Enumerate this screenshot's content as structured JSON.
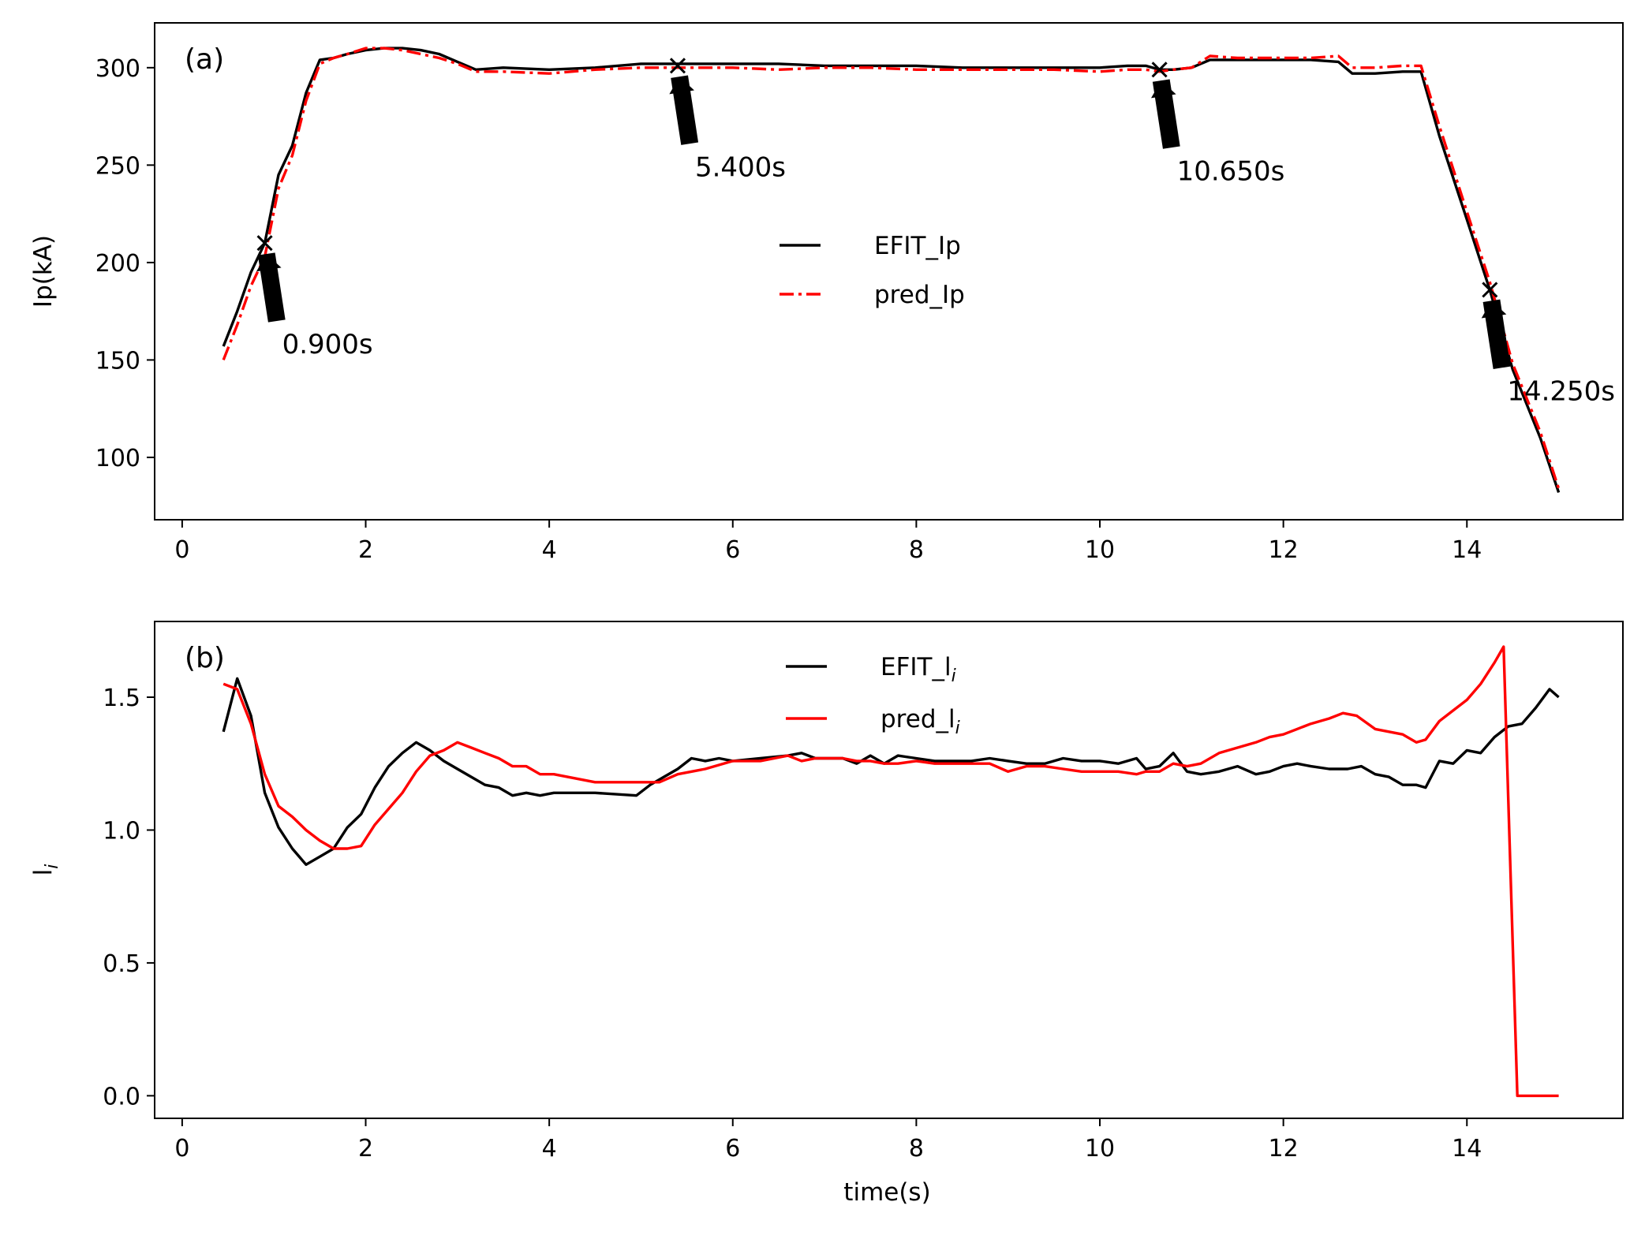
{
  "chart_data": [
    {
      "type": "line",
      "panel_label": "(a)",
      "xlabel": "",
      "ylabel": "Ip(kA)",
      "xlim": [
        -0.3,
        15.7
      ],
      "ylim": [
        68,
        323
      ],
      "xticks": [
        0,
        2,
        4,
        6,
        8,
        10,
        12,
        14
      ],
      "xtick_labels": [
        "0",
        "2",
        "4",
        "6",
        "8",
        "10",
        "12",
        "14"
      ],
      "yticks": [
        100,
        150,
        200,
        250,
        300
      ],
      "ytick_labels": [
        "100",
        "150",
        "200",
        "250",
        "300"
      ],
      "legend_position": "center",
      "series": [
        {
          "name": "EFIT_Ip",
          "label": "EFIT_Ip",
          "color": "#000000",
          "style": "solid",
          "x": [
            0.45,
            0.6,
            0.75,
            0.9,
            1.05,
            1.2,
            1.35,
            1.5,
            1.65,
            1.8,
            2.0,
            2.2,
            2.4,
            2.6,
            2.8,
            3.0,
            3.2,
            3.5,
            4.0,
            4.5,
            5.0,
            5.4,
            6.0,
            6.5,
            7.0,
            7.5,
            8.0,
            8.5,
            9.0,
            9.5,
            10.0,
            10.3,
            10.5,
            10.65,
            10.8,
            11.0,
            11.2,
            11.5,
            12.0,
            12.3,
            12.6,
            12.75,
            13.0,
            13.3,
            13.5,
            13.7,
            14.0,
            14.25,
            14.5,
            14.8,
            15.0
          ],
          "values": [
            157,
            175,
            195,
            210,
            245,
            260,
            287,
            304,
            305,
            307,
            309,
            310,
            310,
            309,
            307,
            303,
            299,
            300,
            299,
            300,
            302,
            302,
            302,
            302,
            301,
            301,
            301,
            300,
            300,
            300,
            300,
            301,
            301,
            299,
            299,
            300,
            304,
            304,
            304,
            304,
            303,
            297,
            297,
            298,
            298,
            265,
            222,
            186,
            145,
            110,
            82
          ]
        },
        {
          "name": "pred_Ip",
          "label": "pred_Ip",
          "color": "#ff0000",
          "style": "dashdot",
          "x": [
            0.45,
            0.6,
            0.75,
            0.9,
            1.05,
            1.2,
            1.35,
            1.5,
            1.65,
            1.8,
            2.0,
            2.2,
            2.4,
            2.6,
            2.8,
            3.0,
            3.2,
            3.5,
            4.0,
            4.5,
            5.0,
            5.4,
            6.0,
            6.5,
            7.0,
            7.5,
            8.0,
            8.5,
            9.0,
            9.5,
            10.0,
            10.3,
            10.5,
            10.65,
            10.8,
            11.0,
            11.2,
            11.5,
            12.0,
            12.3,
            12.6,
            12.75,
            13.0,
            13.3,
            13.5,
            13.7,
            14.0,
            14.25,
            14.5,
            14.8,
            15.0
          ],
          "values": [
            150,
            168,
            188,
            203,
            238,
            255,
            283,
            302,
            305,
            307,
            310,
            310,
            309,
            307,
            305,
            302,
            298,
            298,
            297,
            299,
            300,
            300,
            300,
            299,
            300,
            300,
            299,
            299,
            299,
            299,
            298,
            299,
            299,
            298,
            299,
            300,
            306,
            305,
            305,
            305,
            306,
            300,
            300,
            301,
            301,
            270,
            226,
            190,
            148,
            113,
            84
          ]
        }
      ],
      "annotations": [
        {
          "x": 0.9,
          "y": 210,
          "text": "0.900s"
        },
        {
          "x": 5.4,
          "y": 301,
          "text": "5.400s"
        },
        {
          "x": 10.65,
          "y": 299,
          "text": "10.650s"
        },
        {
          "x": 14.25,
          "y": 186,
          "text": "14.250s"
        }
      ]
    },
    {
      "type": "line",
      "panel_label": "(b)",
      "xlabel": "time(s)",
      "ylabel": "l",
      "ylabel_sub": "i",
      "xlim": [
        -0.3,
        15.7
      ],
      "ylim": [
        -0.085,
        1.785
      ],
      "xticks": [
        0,
        2,
        4,
        6,
        8,
        10,
        12,
        14
      ],
      "xtick_labels": [
        "0",
        "2",
        "4",
        "6",
        "8",
        "10",
        "12",
        "14"
      ],
      "yticks": [
        0.0,
        0.5,
        1.0,
        1.5
      ],
      "ytick_labels": [
        "0.0",
        "0.5",
        "1.0",
        "1.5"
      ],
      "legend_position": "upper center",
      "series": [
        {
          "name": "EFIT_li",
          "label": "EFIT_l",
          "label_sub": "i",
          "color": "#000000",
          "style": "solid",
          "x": [
            0.45,
            0.6,
            0.75,
            0.9,
            1.05,
            1.2,
            1.35,
            1.5,
            1.65,
            1.8,
            1.95,
            2.1,
            2.25,
            2.4,
            2.55,
            2.7,
            2.85,
            3.0,
            3.15,
            3.3,
            3.45,
            3.6,
            3.75,
            3.9,
            4.05,
            4.5,
            4.95,
            5.1,
            5.25,
            5.4,
            5.55,
            5.7,
            5.85,
            6.0,
            6.3,
            6.6,
            6.75,
            6.9,
            7.2,
            7.35,
            7.5,
            7.65,
            7.8,
            8.0,
            8.2,
            8.4,
            8.6,
            8.8,
            9.0,
            9.2,
            9.4,
            9.6,
            9.8,
            10.0,
            10.2,
            10.4,
            10.5,
            10.65,
            10.8,
            10.95,
            11.1,
            11.3,
            11.5,
            11.7,
            11.85,
            12.0,
            12.15,
            12.3,
            12.5,
            12.7,
            12.85,
            13.0,
            13.15,
            13.3,
            13.45,
            13.55,
            13.7,
            13.85,
            14.0,
            14.15,
            14.3,
            14.45,
            14.6,
            14.75,
            14.9,
            15.0
          ],
          "values": [
            1.37,
            1.57,
            1.43,
            1.14,
            1.01,
            0.93,
            0.87,
            0.9,
            0.93,
            1.01,
            1.06,
            1.16,
            1.24,
            1.29,
            1.33,
            1.3,
            1.26,
            1.23,
            1.2,
            1.17,
            1.16,
            1.13,
            1.14,
            1.13,
            1.14,
            1.14,
            1.13,
            1.17,
            1.2,
            1.23,
            1.27,
            1.26,
            1.27,
            1.26,
            1.27,
            1.28,
            1.29,
            1.27,
            1.27,
            1.25,
            1.28,
            1.25,
            1.28,
            1.27,
            1.26,
            1.26,
            1.26,
            1.27,
            1.26,
            1.25,
            1.25,
            1.27,
            1.26,
            1.26,
            1.25,
            1.27,
            1.23,
            1.24,
            1.29,
            1.22,
            1.21,
            1.22,
            1.24,
            1.21,
            1.22,
            1.24,
            1.25,
            1.24,
            1.23,
            1.23,
            1.24,
            1.21,
            1.2,
            1.17,
            1.17,
            1.16,
            1.26,
            1.25,
            1.3,
            1.29,
            1.35,
            1.39,
            1.4,
            1.46,
            1.53,
            1.5
          ]
        },
        {
          "name": "pred_li",
          "label": "pred_l",
          "label_sub": "i",
          "color": "#ff0000",
          "style": "solid",
          "x": [
            0.45,
            0.6,
            0.75,
            0.9,
            1.05,
            1.2,
            1.35,
            1.5,
            1.65,
            1.8,
            1.95,
            2.1,
            2.25,
            2.4,
            2.55,
            2.7,
            2.85,
            3.0,
            3.15,
            3.3,
            3.45,
            3.6,
            3.75,
            3.9,
            4.05,
            4.2,
            4.5,
            4.65,
            4.8,
            5.0,
            5.2,
            5.4,
            5.7,
            6.0,
            6.3,
            6.6,
            6.75,
            6.9,
            7.2,
            7.35,
            7.5,
            7.65,
            7.8,
            8.0,
            8.2,
            8.4,
            8.6,
            8.8,
            9.0,
            9.2,
            9.4,
            9.6,
            9.8,
            10.0,
            10.2,
            10.4,
            10.5,
            10.65,
            10.8,
            10.95,
            11.1,
            11.3,
            11.5,
            11.7,
            11.85,
            12.0,
            12.15,
            12.3,
            12.5,
            12.65,
            12.8,
            13.0,
            13.15,
            13.3,
            13.45,
            13.55,
            13.7,
            13.85,
            14.0,
            14.15,
            14.3,
            14.4,
            14.55,
            15.0
          ],
          "values": [
            1.55,
            1.53,
            1.4,
            1.21,
            1.09,
            1.05,
            1.0,
            0.96,
            0.93,
            0.93,
            0.94,
            1.02,
            1.08,
            1.14,
            1.22,
            1.28,
            1.3,
            1.33,
            1.31,
            1.29,
            1.27,
            1.24,
            1.24,
            1.21,
            1.21,
            1.2,
            1.18,
            1.18,
            1.18,
            1.18,
            1.18,
            1.21,
            1.23,
            1.26,
            1.26,
            1.28,
            1.26,
            1.27,
            1.27,
            1.26,
            1.26,
            1.25,
            1.25,
            1.26,
            1.25,
            1.25,
            1.25,
            1.25,
            1.22,
            1.24,
            1.24,
            1.23,
            1.22,
            1.22,
            1.22,
            1.21,
            1.22,
            1.22,
            1.25,
            1.24,
            1.25,
            1.29,
            1.31,
            1.33,
            1.35,
            1.36,
            1.38,
            1.4,
            1.42,
            1.44,
            1.43,
            1.38,
            1.37,
            1.36,
            1.33,
            1.34,
            1.41,
            1.45,
            1.49,
            1.55,
            1.63,
            1.69,
            0.0,
            0.0
          ]
        }
      ]
    }
  ]
}
